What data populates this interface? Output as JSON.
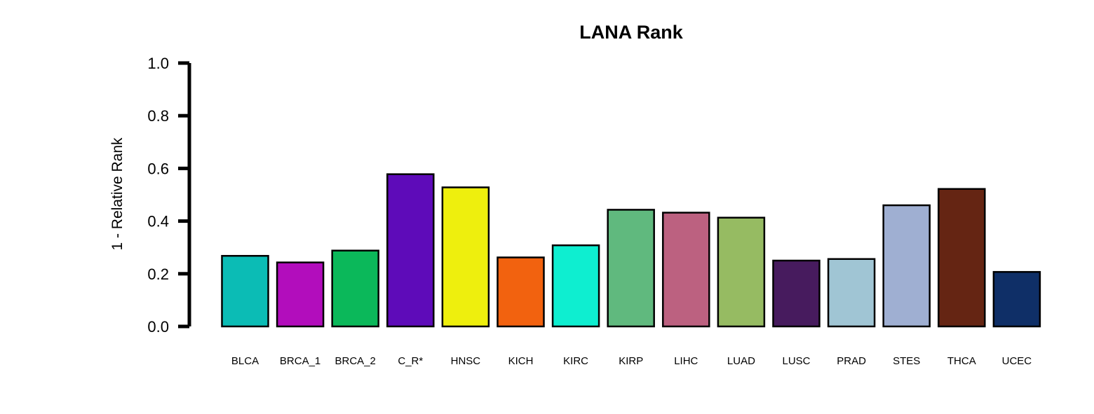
{
  "chart_data": {
    "type": "bar",
    "title": "LANA Rank",
    "xlabel": "",
    "ylabel": "1 - Relative Rank",
    "ylim": [
      0,
      1
    ],
    "yticks": [
      "0.0",
      "0.2",
      "0.4",
      "0.6",
      "0.8",
      "1.0"
    ],
    "categories": [
      "BLCA",
      "BRCA_1",
      "BRCA_2",
      "C_R*",
      "HNSC",
      "KICH",
      "KIRC",
      "KIRP",
      "LIHC",
      "LUAD",
      "LUSC",
      "PRAD",
      "STES",
      "THCA",
      "UCEC"
    ],
    "values": [
      0.268,
      0.243,
      0.288,
      0.578,
      0.528,
      0.262,
      0.308,
      0.443,
      0.432,
      0.413,
      0.25,
      0.256,
      0.46,
      0.522,
      0.207
    ],
    "colors": [
      "#0BBCB5",
      "#B20DBC",
      "#0BB85A",
      "#5E0BB9",
      "#EEEF0D",
      "#F2620F",
      "#0EEED0",
      "#60B97E",
      "#BC6180",
      "#96BB62",
      "#471B5E",
      "#A0C5D4",
      "#9FAFD2",
      "#652513",
      "#0F2F67"
    ],
    "grid": false,
    "legend": "none"
  }
}
